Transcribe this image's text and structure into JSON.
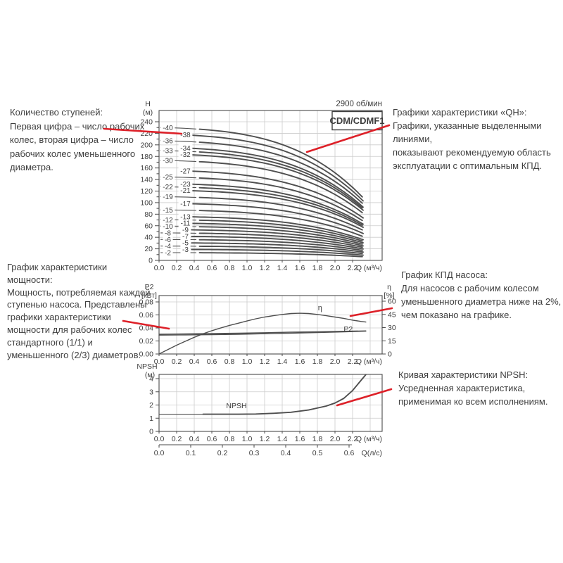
{
  "colors": {
    "red": "#dd2028",
    "curve": "#4f4f4f",
    "grid": "#cccccc",
    "axis": "#4a4a4a",
    "text": "#3c3c3c"
  },
  "rpm_label": "2900 об/мин",
  "model_label": "CDM/CDMF1",
  "notes": {
    "stages": "Количество ступеней:\nПервая цифра – число рабочих\nколес, вторая цифра – число\nрабочих колес уменьшенного\nдиаметра.",
    "qh": "Графики характеристики «QH»:\nГрафики, указанные выделенными линиями,\nпоказывают рекомендуемую область\nэксплуатации с оптимальным КПД.",
    "power": "График характеристики мощности:\nМощность, потребляемая каждой\nступенью насоса. Представлены\nграфики характеристики\nмощности для рабочих колес\nстандартного (1/1) и\nуменьшенного (2/3) диаметров.",
    "efficiency": "График КПД насоса:\nДля насосов с рабочим колесом\nуменьшенного диаметра ниже на 2%,\nчем показано на графике.",
    "npsh": "Кривая характеристики NPSH:\nУсредненная характеристика,\nприменимая ко всем исполнениям."
  },
  "chart_data": [
    {
      "id": "qh",
      "type": "line",
      "title": "CDM/CDMF1",
      "subtitle": "2900 об/мин",
      "xlabel": "Q (м³/ч)",
      "ylabel_lines": [
        "H",
        "(м)"
      ],
      "xlim": [
        0,
        2.54
      ],
      "ylim": [
        0,
        260
      ],
      "x_ticks": [
        "0.0",
        "0.2",
        "0.4",
        "0.6",
        "0.8",
        "1.0",
        "1.2",
        "1.4",
        "1.6",
        "1.8",
        "2.0",
        "2.2"
      ],
      "x_tick_step": 0.2,
      "y_ticks": [
        "0",
        "20",
        "40",
        "60",
        "80",
        "100",
        "120",
        "140",
        "160",
        "180",
        "200",
        "220",
        "240"
      ],
      "y_tick_step": 20,
      "y_minor_step": 10,
      "droop_model": {
        "a": 0.13,
        "p": 1.5,
        "b": 0.42,
        "q": 3.5,
        "q_max": 2.35
      },
      "series": [
        {
          "label": "-40",
          "stages": 40,
          "h0": 230.0,
          "reduced": false
        },
        {
          "label": "-38",
          "stages": 38,
          "h0": 218.6,
          "reduced": true
        },
        {
          "label": "-36",
          "stages": 36,
          "h0": 207.2,
          "reduced": false
        },
        {
          "label": "-34",
          "stages": 34,
          "h0": 195.8,
          "reduced": true
        },
        {
          "label": "-33",
          "stages": 33,
          "h0": 190.1,
          "reduced": false
        },
        {
          "label": "-32",
          "stages": 32,
          "h0": 184.4,
          "reduced": true
        },
        {
          "label": "-30",
          "stages": 30,
          "h0": 173.0,
          "reduced": false
        },
        {
          "label": "-27",
          "stages": 27,
          "h0": 155.9,
          "reduced": true
        },
        {
          "label": "-25",
          "stages": 25,
          "h0": 144.5,
          "reduced": false
        },
        {
          "label": "-23",
          "stages": 23,
          "h0": 133.1,
          "reduced": true
        },
        {
          "label": "-22",
          "stages": 22,
          "h0": 127.4,
          "reduced": false
        },
        {
          "label": "-21",
          "stages": 21,
          "h0": 121.7,
          "reduced": true
        },
        {
          "label": "-19",
          "stages": 19,
          "h0": 110.3,
          "reduced": false
        },
        {
          "label": "-17",
          "stages": 17,
          "h0": 98.9,
          "reduced": true
        },
        {
          "label": "-15",
          "stages": 15,
          "h0": 87.5,
          "reduced": false
        },
        {
          "label": "-13",
          "stages": 13,
          "h0": 76.1,
          "reduced": true
        },
        {
          "label": "-12",
          "stages": 12,
          "h0": 70.4,
          "reduced": false
        },
        {
          "label": "-11",
          "stages": 11,
          "h0": 64.7,
          "reduced": true
        },
        {
          "label": "-10",
          "stages": 10,
          "h0": 59.0,
          "reduced": false
        },
        {
          "label": "-9",
          "stages": 9,
          "h0": 53.3,
          "reduced": true
        },
        {
          "label": "-8",
          "stages": 8,
          "h0": 47.6,
          "reduced": false
        },
        {
          "label": "-7",
          "stages": 7,
          "h0": 41.9,
          "reduced": true
        },
        {
          "label": "-6",
          "stages": 6,
          "h0": 36.2,
          "reduced": false
        },
        {
          "label": "-5",
          "stages": 5,
          "h0": 30.5,
          "reduced": true
        },
        {
          "label": "-4",
          "stages": 4,
          "h0": 24.8,
          "reduced": false
        },
        {
          "label": "-3",
          "stages": 3,
          "h0": 19.1,
          "reduced": true
        },
        {
          "label": "-2",
          "stages": 2,
          "h0": 13.4,
          "reduced": false
        }
      ]
    },
    {
      "id": "power_efficiency",
      "type": "line",
      "xlabel": "Q (м³/ч)",
      "x_ticks": [
        "0.0",
        "0.2",
        "0.4",
        "0.6",
        "0.8",
        "1.0",
        "1.2",
        "1.4",
        "1.6",
        "1.8",
        "2.0",
        "2.2"
      ],
      "left_axis": {
        "label_lines": [
          "P2",
          "[кВт]"
        ],
        "ticks": [
          "0.00",
          "0.02",
          "0.04",
          "0.06",
          "0.08"
        ],
        "values": [
          0,
          0.02,
          0.04,
          0.06,
          0.08
        ]
      },
      "right_axis": {
        "label_lines": [
          "η",
          "[%]"
        ],
        "ticks": [
          "0",
          "15",
          "30",
          "45",
          "60"
        ],
        "values": [
          0,
          15,
          30,
          45,
          60
        ]
      },
      "series": [
        {
          "name": "η",
          "axis": "right",
          "points": [
            [
              0,
              0
            ],
            [
              0.1,
              5
            ],
            [
              0.2,
              10
            ],
            [
              0.3,
              14.5
            ],
            [
              0.4,
              19
            ],
            [
              0.5,
              23
            ],
            [
              0.6,
              26.5
            ],
            [
              0.7,
              29.5
            ],
            [
              0.8,
              32.5
            ],
            [
              0.9,
              35
            ],
            [
              1.0,
              37.5
            ],
            [
              1.1,
              40
            ],
            [
              1.2,
              42
            ],
            [
              1.3,
              43.5
            ],
            [
              1.4,
              45
            ],
            [
              1.5,
              46
            ],
            [
              1.6,
              46.3
            ],
            [
              1.7,
              46
            ],
            [
              1.8,
              45
            ],
            [
              1.9,
              43.5
            ],
            [
              2.0,
              42
            ],
            [
              2.1,
              40.5
            ],
            [
              2.2,
              38.5
            ],
            [
              2.3,
              37
            ],
            [
              2.35,
              36.3
            ]
          ]
        },
        {
          "name": "P2 (1/1)",
          "axis": "left",
          "points": [
            [
              0,
              0.0305
            ],
            [
              0.3,
              0.0308
            ],
            [
              0.6,
              0.0313
            ],
            [
              0.9,
              0.0319
            ],
            [
              1.2,
              0.0327
            ],
            [
              1.5,
              0.0335
            ],
            [
              1.8,
              0.0342
            ],
            [
              2.1,
              0.0349
            ],
            [
              2.35,
              0.0355
            ]
          ]
        },
        {
          "name": "P2 (2/3)",
          "axis": "left",
          "points": [
            [
              0,
              0.029
            ],
            [
              0.3,
              0.0293
            ],
            [
              0.6,
              0.0297
            ],
            [
              0.9,
              0.0303
            ],
            [
              1.2,
              0.0311
            ],
            [
              1.5,
              0.032
            ],
            [
              1.8,
              0.033
            ],
            [
              2.1,
              0.0341
            ],
            [
              2.35,
              0.035
            ]
          ]
        }
      ],
      "eta_label": "η",
      "p2_label": "P2"
    },
    {
      "id": "npsh",
      "type": "line",
      "xlabel": "Q (м³/ч)",
      "ylabel_lines": [
        "NPSH",
        "(м)"
      ],
      "x_ticks": [
        "0.0",
        "0.2",
        "0.4",
        "0.6",
        "0.8",
        "1.0",
        "1.2",
        "1.4",
        "1.6",
        "1.8",
        "2.0",
        "2.2"
      ],
      "y_ticks": [
        "0",
        "1",
        "2",
        "3",
        "4"
      ],
      "secondary_x": {
        "label": "Q(л/с)",
        "ticks": [
          "0.0",
          "0.1",
          "0.2",
          "0.3",
          "0.4",
          "0.5",
          "0.6"
        ],
        "m3h_per_unit": 3.6
      },
      "series": [
        {
          "name": "NPSH",
          "points": [
            [
              0,
              1.3
            ],
            [
              0.5,
              1.3
            ],
            [
              0.9,
              1.3
            ],
            [
              1.1,
              1.32
            ],
            [
              1.3,
              1.37
            ],
            [
              1.5,
              1.45
            ],
            [
              1.7,
              1.62
            ],
            [
              1.9,
              1.92
            ],
            [
              2.0,
              2.15
            ],
            [
              2.1,
              2.5
            ],
            [
              2.2,
              3.1
            ],
            [
              2.3,
              3.9
            ],
            [
              2.35,
              4.3
            ]
          ]
        }
      ],
      "curve_label": "NPSH"
    }
  ]
}
